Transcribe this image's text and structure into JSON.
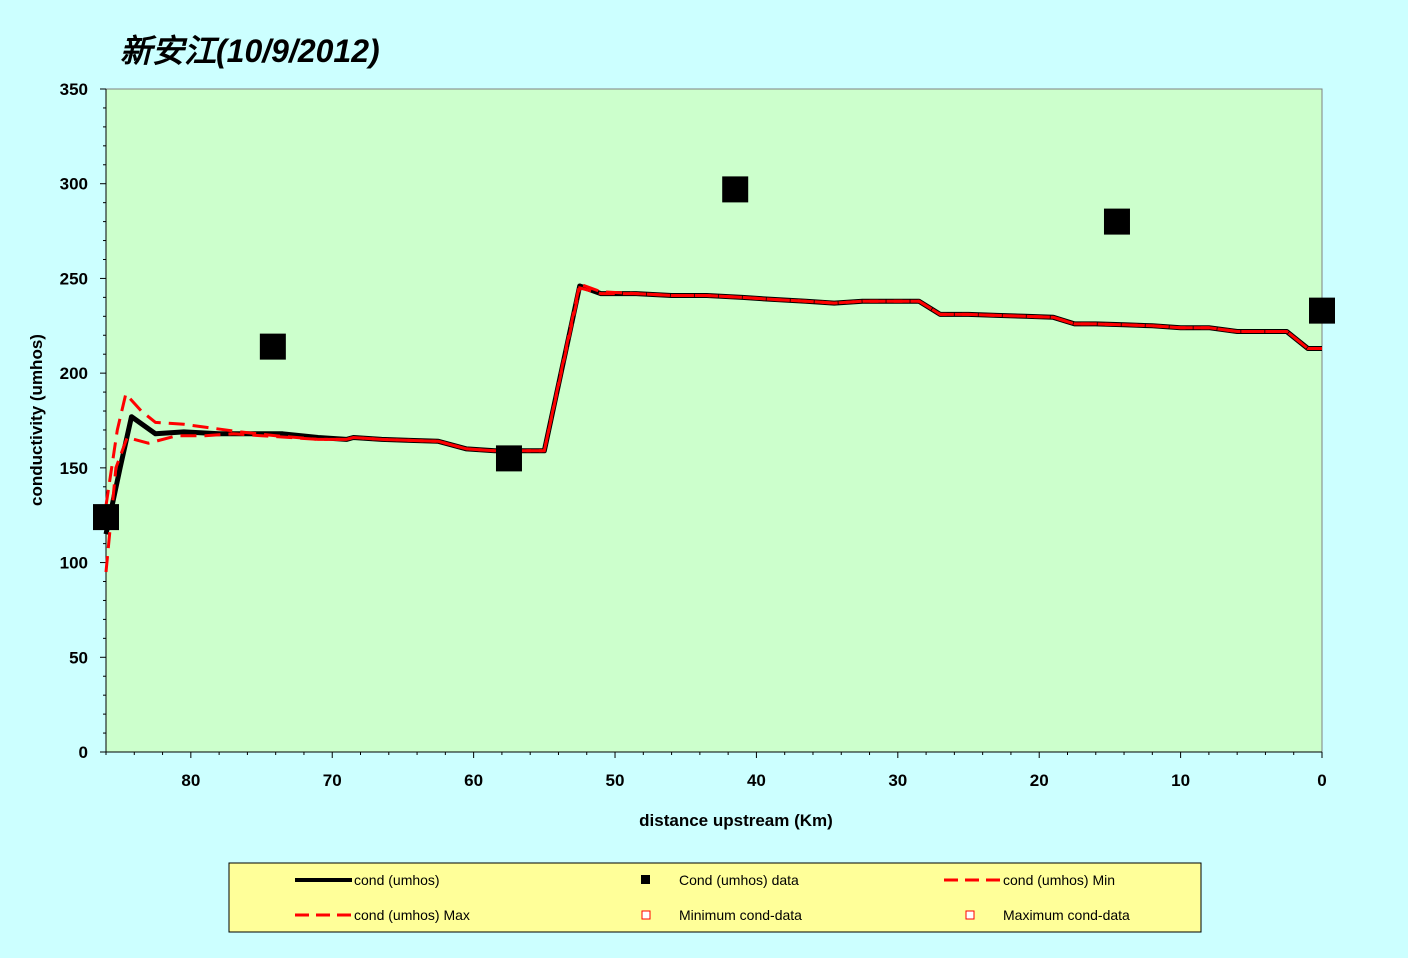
{
  "chart_data": {
    "type": "line",
    "title": "新安江(10/9/2012)",
    "xlabel": "distance upstream (Km)",
    "ylabel": "conductivity (umhos)",
    "xlim": [
      86,
      0
    ],
    "ylim": [
      0,
      350
    ],
    "x_reversed": true,
    "xticks": [
      80,
      70,
      60,
      50,
      40,
      30,
      20,
      10,
      0
    ],
    "yticks": [
      0,
      50,
      100,
      150,
      200,
      250,
      300,
      350
    ],
    "grid": false,
    "colors": {
      "background": "#ccffff",
      "plot_area": "#ccffcc",
      "legend_bg": "#ffff99",
      "model": "#000000",
      "minmax": "#ff0000"
    },
    "legend_position": "bottom",
    "series": [
      {
        "name": "cond (umhos)",
        "style": "solid-black",
        "x": [
          86,
          85,
          84.2,
          82.5,
          80.5,
          78,
          76,
          73.5,
          71,
          69,
          68.5,
          66.5,
          64.5,
          62.5,
          60.5,
          58.5,
          57.5,
          55,
          52.5,
          51,
          48.5,
          46,
          43.5,
          41,
          39,
          36.5,
          34.5,
          32.5,
          30.5,
          28.5,
          27,
          25,
          23,
          21,
          19,
          17.5,
          16,
          14,
          12,
          10,
          8,
          6,
          4,
          2.5,
          1,
          0
        ],
        "y": [
          115,
          150,
          177,
          168,
          169,
          168,
          168,
          168,
          166,
          165,
          166,
          165,
          164.5,
          164,
          160,
          159,
          159,
          159,
          246,
          242,
          242,
          241,
          241,
          240,
          239,
          238,
          237,
          238,
          238,
          238,
          231,
          231,
          230.5,
          230,
          229.5,
          226,
          226,
          225.5,
          225,
          224,
          224,
          222,
          222,
          222,
          213,
          213
        ]
      },
      {
        "name": "Cond (umhos) data",
        "style": "square-markers",
        "x": [
          86,
          74.2,
          57.5,
          41.5,
          14.5,
          0
        ],
        "y": [
          124,
          214,
          155,
          297,
          280,
          233
        ]
      },
      {
        "name": "cond (umhos) Min",
        "style": "dashed-red",
        "x": [
          86,
          85.3,
          84.5,
          83,
          81,
          79,
          77,
          75,
          73,
          71,
          69,
          68.5,
          66.5,
          64.5,
          62.5,
          60.5,
          58.5,
          57.5,
          55,
          52.5,
          51,
          48.5,
          46,
          43.5,
          41,
          39,
          36.5,
          34.5,
          32.5,
          30.5,
          28.5,
          27,
          25,
          23,
          21,
          19,
          17.5,
          16,
          14,
          12,
          10,
          8,
          6,
          4,
          2.5,
          1,
          0
        ],
        "y": [
          95,
          150,
          166,
          163,
          167,
          167,
          168,
          167,
          166,
          165,
          165,
          166,
          165,
          164.5,
          164,
          160,
          159,
          159,
          159,
          245,
          242,
          242,
          241,
          241,
          240,
          239,
          238,
          237,
          238,
          238,
          238,
          231,
          231,
          230.5,
          230,
          229.5,
          226,
          226,
          225.5,
          225,
          224,
          224,
          222,
          222,
          222,
          213,
          213
        ]
      },
      {
        "name": "cond (umhos) Max",
        "style": "dashed-red",
        "x": [
          86,
          85.2,
          84.6,
          83.5,
          82.5,
          80.5,
          78.5,
          76.5,
          74,
          71,
          69,
          68.5,
          66.5,
          64.5,
          62.5,
          60.5,
          58.5,
          57.5,
          55,
          52.5,
          51,
          48.5,
          46,
          43.5,
          41,
          39,
          36.5,
          34.5,
          32.5,
          30.5,
          28.5,
          27,
          25,
          23,
          21,
          19,
          17.5,
          16,
          14,
          12,
          10,
          8,
          6,
          4,
          2.5,
          1,
          0
        ],
        "y": [
          130,
          170,
          189,
          180,
          174,
          173,
          171,
          169,
          167,
          165,
          165,
          166,
          165,
          164.5,
          164,
          160,
          159,
          159,
          159,
          247,
          243,
          242,
          241,
          241,
          240,
          239,
          238,
          237,
          238,
          238,
          238,
          231,
          231,
          230.5,
          230,
          229.5,
          226,
          226,
          225.5,
          225,
          224,
          224,
          222,
          222,
          222,
          213,
          213
        ]
      },
      {
        "name": "Minimum cond-data",
        "style": "hollow-red-square",
        "x": [],
        "y": []
      },
      {
        "name": "Maximum cond-data",
        "style": "hollow-red-square",
        "x": [],
        "y": []
      }
    ]
  }
}
